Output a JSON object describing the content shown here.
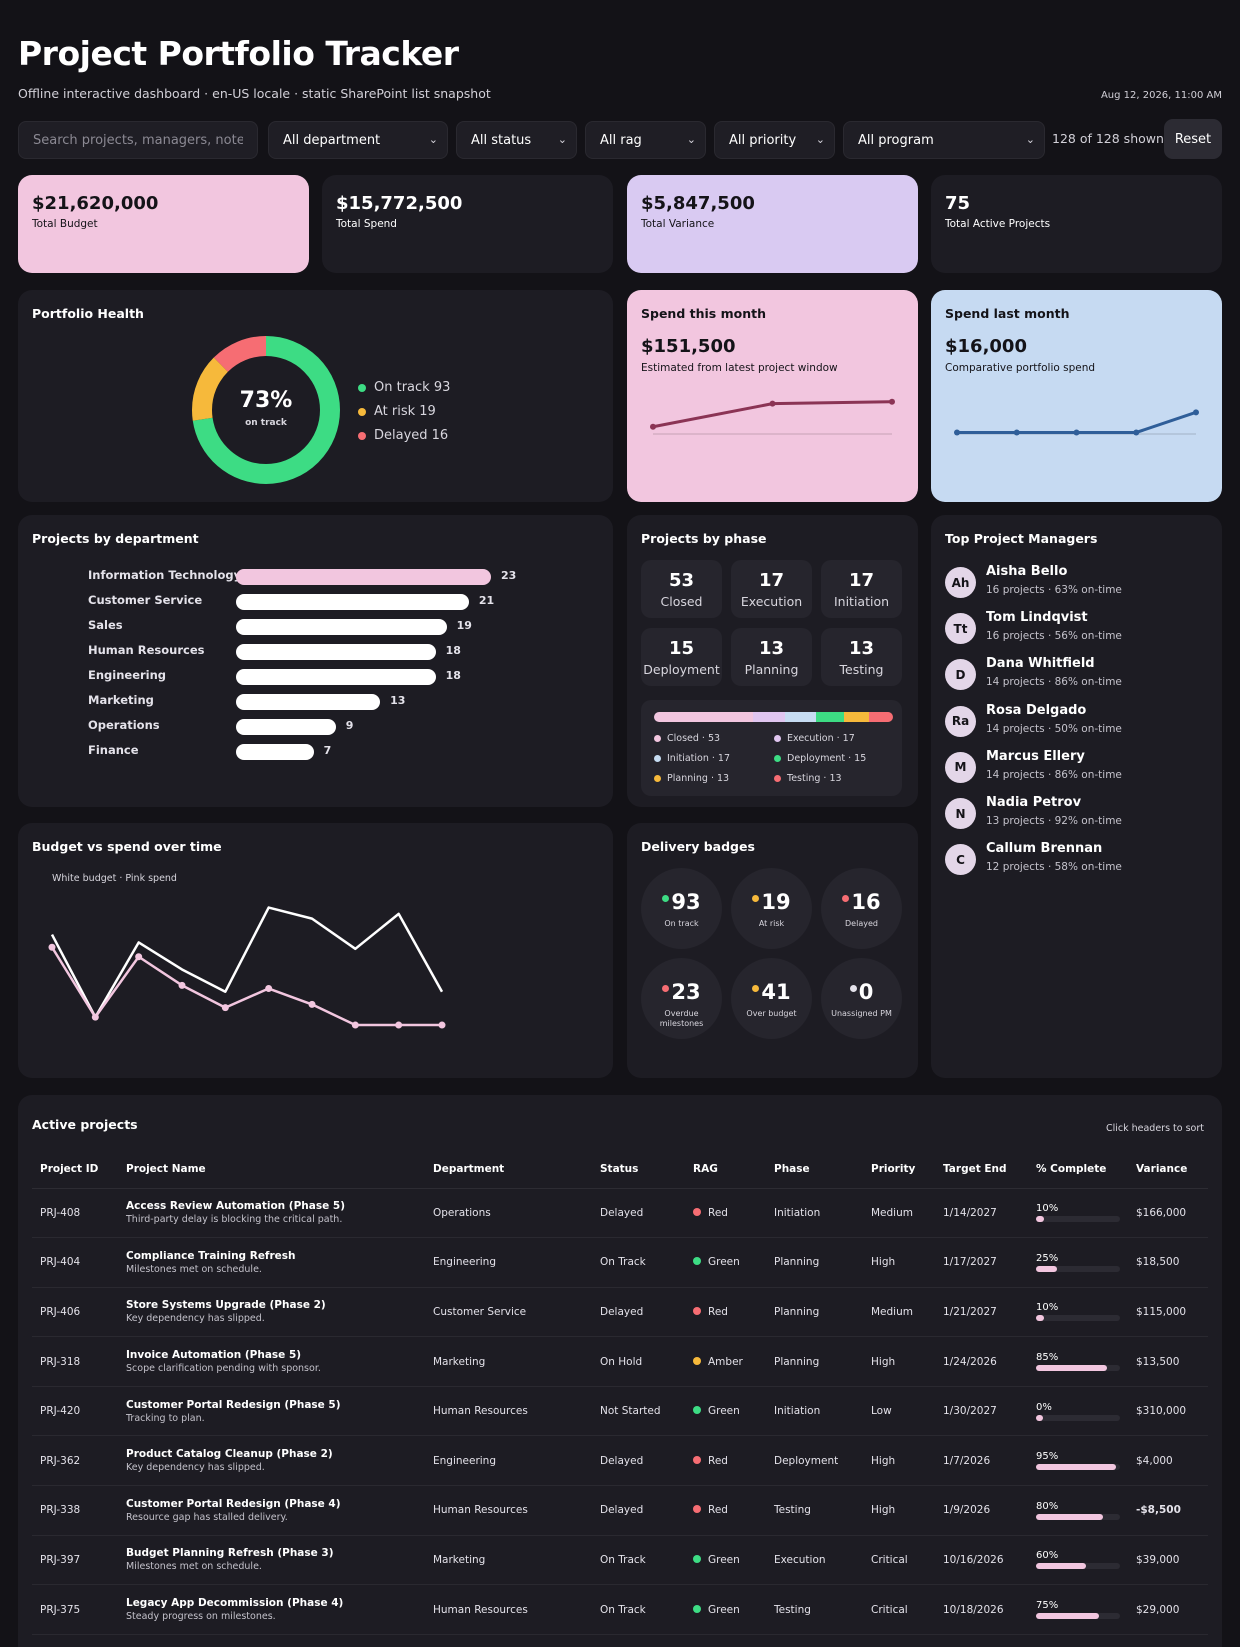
{
  "header": {
    "title": "Project Portfolio Tracker",
    "subtitle": "Offline interactive dashboard · en-US locale · static SharePoint list snapshot",
    "timestamp": "Aug 12, 2026, 11:00 AM"
  },
  "filters": {
    "search_placeholder": "Search projects, managers, notes...",
    "department": "All department",
    "status": "All status",
    "rag": "All rag",
    "priority": "All priority",
    "program": "All program",
    "shown": "128 of 128 shown",
    "reset_label": "Reset"
  },
  "kpis": [
    {
      "value": "$21,620,000",
      "label": "Total Budget",
      "color": "#f2c6df"
    },
    {
      "value": "$15,772,500",
      "label": "Total Spend",
      "color": "#1d1c23"
    },
    {
      "value": "$5,847,500",
      "label": "Total Variance",
      "color": "#d9caf2"
    },
    {
      "value": "75",
      "label": "Total Active Projects",
      "color": "#1d1c23"
    }
  ],
  "health": {
    "title": "Portfolio Health",
    "center_value": "73%",
    "center_label": "on track",
    "on_track": 93,
    "at_risk": 19,
    "delayed": 16,
    "legend": [
      "On track 93",
      "At risk 19",
      "Delayed 16"
    ],
    "colors": {
      "on_track": "#3ddc84",
      "at_risk": "#f6b93b",
      "delayed": "#f66d73"
    }
  },
  "spend_this_month": {
    "title": "Spend this month",
    "value": "$151,500",
    "subtitle": "Estimated from latest project window",
    "series": [
      18,
      42,
      44
    ],
    "color": "#8b3455"
  },
  "spend_last_month": {
    "title": "Spend last month",
    "value": "$16,000",
    "subtitle": "Comparative portfolio spend",
    "series": [
      12,
      12,
      12,
      12,
      33
    ],
    "color": "#2f5e99"
  },
  "departments": {
    "title": "Projects by department",
    "items": [
      {
        "name": "Information Technology",
        "value": 23
      },
      {
        "name": "Customer Service",
        "value": 21
      },
      {
        "name": "Sales",
        "value": 19
      },
      {
        "name": "Human Resources",
        "value": 18
      },
      {
        "name": "Engineering",
        "value": 18
      },
      {
        "name": "Marketing",
        "value": 13
      },
      {
        "name": "Operations",
        "value": 9
      },
      {
        "name": "Finance",
        "value": 7
      }
    ],
    "highlight_color": "#f2c6df",
    "bar_color": "#ffffff"
  },
  "phases": {
    "title": "Projects by phase",
    "tiles": [
      {
        "value": "53",
        "label": "Closed"
      },
      {
        "value": "17",
        "label": "Execution"
      },
      {
        "value": "17",
        "label": "Initiation"
      },
      {
        "value": "15",
        "label": "Deployment"
      },
      {
        "value": "13",
        "label": "Planning"
      },
      {
        "value": "13",
        "label": "Testing"
      }
    ],
    "legend": [
      {
        "label": "Closed · 53",
        "value": 53,
        "color": "#f2c6df"
      },
      {
        "label": "Execution · 17",
        "value": 17,
        "color": "#e0c6f0"
      },
      {
        "label": "Initiation · 17",
        "value": 17,
        "color": "#c6dcf2"
      },
      {
        "label": "Deployment · 15",
        "value": 15,
        "color": "#3ddc84"
      },
      {
        "label": "Planning · 13",
        "value": 13,
        "color": "#f6b93b"
      },
      {
        "label": "Testing · 13",
        "value": 13,
        "color": "#f66d73"
      }
    ]
  },
  "managers": {
    "title": "Top Project Managers",
    "items": [
      {
        "initials": "Ah",
        "name": "Aisha Bello",
        "meta": "16 projects · 63% on-time"
      },
      {
        "initials": "Tt",
        "name": "Tom Lindqvist",
        "meta": "16 projects · 56% on-time"
      },
      {
        "initials": "D",
        "name": "Dana Whitfield",
        "meta": "14 projects · 86% on-time"
      },
      {
        "initials": "Ra",
        "name": "Rosa Delgado",
        "meta": "14 projects · 50% on-time"
      },
      {
        "initials": "M",
        "name": "Marcus Ellery",
        "meta": "14 projects · 86% on-time"
      },
      {
        "initials": "N",
        "name": "Nadia Petrov",
        "meta": "13 projects · 92% on-time"
      },
      {
        "initials": "C",
        "name": "Callum Brennan",
        "meta": "12 projects · 58% on-time"
      }
    ]
  },
  "budget_chart": {
    "title": "Budget vs spend over time",
    "note": "White budget · Pink spend",
    "chart_data": {
      "type": "line",
      "series": [
        {
          "name": "budget",
          "values": [
            62,
            10,
            57,
            40,
            26,
            79,
            72,
            53,
            75,
            26
          ],
          "color": "#ffffff"
        },
        {
          "name": "spend",
          "values": [
            54,
            10,
            48,
            30,
            16,
            28,
            18,
            5,
            5,
            5
          ],
          "color": "#f2c6df"
        }
      ]
    }
  },
  "badges": {
    "title": "Delivery badges",
    "items": [
      {
        "value": "93",
        "label": "On track",
        "color": "#3ddc84"
      },
      {
        "value": "19",
        "label": "At risk",
        "color": "#f6b93b"
      },
      {
        "value": "16",
        "label": "Delayed",
        "color": "#f66d73"
      },
      {
        "value": "23",
        "label": "Overdue milestones",
        "color": "#f66d73"
      },
      {
        "value": "41",
        "label": "Over budget",
        "color": "#f6b93b"
      },
      {
        "value": "0",
        "label": "Unassigned PM",
        "color": "#e4e2ea"
      }
    ]
  },
  "table": {
    "title": "Active projects",
    "sort_hint": "Click headers to sort",
    "columns": [
      "Project ID",
      "Project Name",
      "Department",
      "Status",
      "RAG",
      "Phase",
      "Priority",
      "Target End",
      "% Complete",
      "Variance"
    ],
    "rows": [
      {
        "id": "PRJ-408",
        "name": "Access Review Automation (Phase 5)",
        "note": "Third-party delay is blocking the critical path.",
        "dept": "Operations",
        "status": "Delayed",
        "rag": "Red",
        "phase": "Initiation",
        "priority": "Medium",
        "end": "1/14/2027",
        "pct": "10%",
        "pct_value": 10,
        "variance": "$166,000"
      },
      {
        "id": "PRJ-404",
        "name": "Compliance Training Refresh",
        "note": "Milestones met on schedule.",
        "dept": "Engineering",
        "status": "On Track",
        "rag": "Green",
        "phase": "Planning",
        "priority": "High",
        "end": "1/17/2027",
        "pct": "25%",
        "pct_value": 25,
        "variance": "$18,500"
      },
      {
        "id": "PRJ-406",
        "name": "Store Systems Upgrade (Phase 2)",
        "note": "Key dependency has slipped.",
        "dept": "Customer Service",
        "status": "Delayed",
        "rag": "Red",
        "phase": "Planning",
        "priority": "Medium",
        "end": "1/21/2027",
        "pct": "10%",
        "pct_value": 10,
        "variance": "$115,000"
      },
      {
        "id": "PRJ-318",
        "name": "Invoice Automation (Phase 5)",
        "note": "Scope clarification pending with sponsor.",
        "dept": "Marketing",
        "status": "On Hold",
        "rag": "Amber",
        "phase": "Planning",
        "priority": "High",
        "end": "1/24/2026",
        "pct": "85%",
        "pct_value": 85,
        "variance": "$13,500"
      },
      {
        "id": "PRJ-420",
        "name": "Customer Portal Redesign (Phase 5)",
        "note": "Tracking to plan.",
        "dept": "Human Resources",
        "status": "Not Started",
        "rag": "Green",
        "phase": "Initiation",
        "priority": "Low",
        "end": "1/30/2027",
        "pct": "0%",
        "pct_value": 0,
        "variance": "$310,000"
      },
      {
        "id": "PRJ-362",
        "name": "Product Catalog Cleanup (Phase 2)",
        "note": "Key dependency has slipped.",
        "dept": "Engineering",
        "status": "Delayed",
        "rag": "Red",
        "phase": "Deployment",
        "priority": "High",
        "end": "1/7/2026",
        "pct": "95%",
        "pct_value": 95,
        "variance": "$4,000"
      },
      {
        "id": "PRJ-338",
        "name": "Customer Portal Redesign (Phase 4)",
        "note": "Resource gap has stalled delivery.",
        "dept": "Human Resources",
        "status": "Delayed",
        "rag": "Red",
        "phase": "Testing",
        "priority": "High",
        "end": "1/9/2026",
        "pct": "80%",
        "pct_value": 80,
        "variance": "-$8,500"
      },
      {
        "id": "PRJ-397",
        "name": "Budget Planning Refresh (Phase 3)",
        "note": "Milestones met on schedule.",
        "dept": "Marketing",
        "status": "On Track",
        "rag": "Green",
        "phase": "Execution",
        "priority": "Critical",
        "end": "10/16/2026",
        "pct": "60%",
        "pct_value": 60,
        "variance": "$39,000"
      },
      {
        "id": "PRJ-375",
        "name": "Legacy App Decommission (Phase 4)",
        "note": "Steady progress on milestones.",
        "dept": "Human Resources",
        "status": "On Track",
        "rag": "Green",
        "phase": "Testing",
        "priority": "Critical",
        "end": "10/18/2026",
        "pct": "75%",
        "pct_value": 75,
        "variance": "$29,000"
      }
    ],
    "rag_colors": {
      "Red": "#f66d73",
      "Green": "#3ddc84",
      "Amber": "#f6b93b"
    }
  }
}
